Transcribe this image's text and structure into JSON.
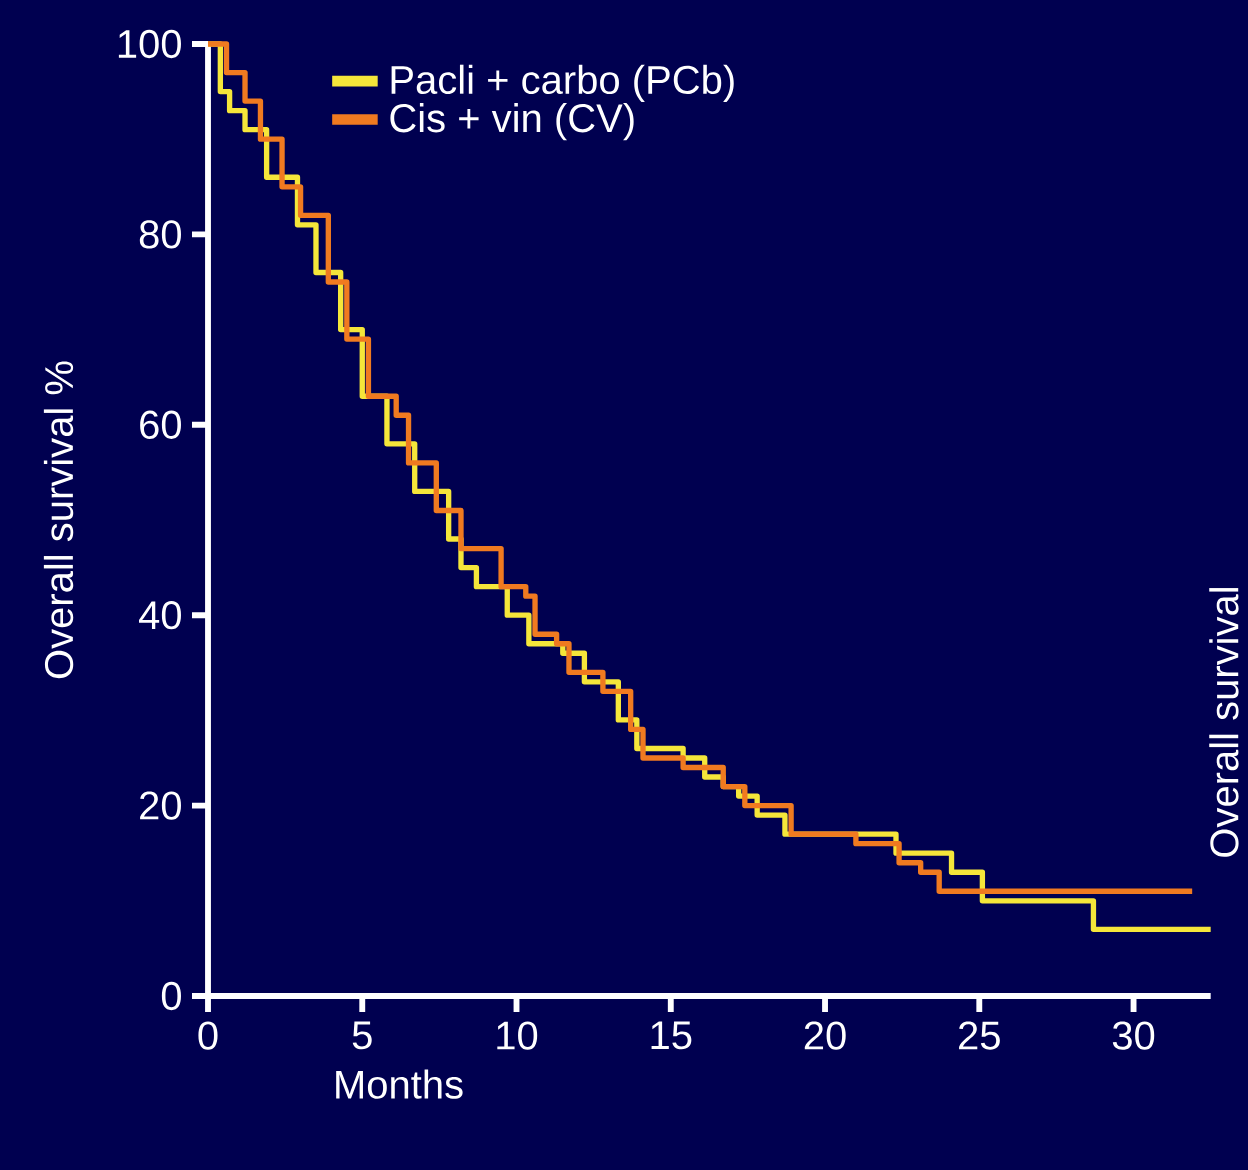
{
  "chart_data": {
    "type": "step",
    "xlabel": "Months",
    "ylabel": "Overall survival %",
    "annotations": [
      "Overall survival"
    ],
    "xlim": [
      0,
      32.5
    ],
    "ylim": [
      0,
      100
    ],
    "xticks": [
      0,
      5,
      10,
      15,
      20,
      25,
      30
    ],
    "yticks": [
      0,
      20,
      40,
      60,
      80,
      100
    ],
    "legend": "top",
    "series": [
      {
        "name": "Pacli + carbo (PCb)",
        "color": "#f5e63a",
        "x": [
          0,
          0.4,
          0.7,
          1.2,
          1.9,
          2.9,
          3.5,
          4.3,
          5.0,
          5.8,
          6.7,
          7.8,
          8.2,
          8.7,
          9.7,
          10.4,
          11.5,
          12.2,
          13.3,
          13.9,
          14.8,
          15.4,
          16.1,
          16.7,
          17.2,
          17.8,
          18.7,
          22.3,
          22.6,
          24.1,
          25.1,
          28.7,
          32.5
        ],
        "values": [
          100,
          95,
          93,
          91,
          86,
          81,
          76,
          70,
          63,
          58,
          53,
          48,
          45,
          43,
          40,
          37,
          36,
          33,
          29,
          26,
          26,
          25,
          23,
          22,
          21,
          19,
          17,
          15,
          15,
          13,
          10,
          7,
          7
        ]
      },
      {
        "name": "Cis + vin (CV)",
        "color": "#f07a20",
        "x": [
          0,
          0.6,
          1.2,
          1.7,
          2.4,
          3.0,
          3.9,
          4.5,
          5.2,
          6.1,
          6.5,
          7.4,
          8.2,
          8.9,
          9.5,
          10.3,
          10.6,
          11.3,
          11.7,
          12.8,
          13.7,
          14.1,
          15.4,
          16.7,
          17.4,
          18.0,
          18.9,
          21.0,
          22.4,
          23.1,
          23.7,
          31.9
        ],
        "values": [
          100,
          97,
          94,
          90,
          85,
          82,
          75,
          69,
          63,
          61,
          56,
          51,
          47,
          47,
          43,
          42,
          38,
          37,
          34,
          32,
          28,
          25,
          24,
          22,
          20,
          20,
          17,
          16,
          14,
          13,
          11,
          11
        ]
      }
    ]
  }
}
